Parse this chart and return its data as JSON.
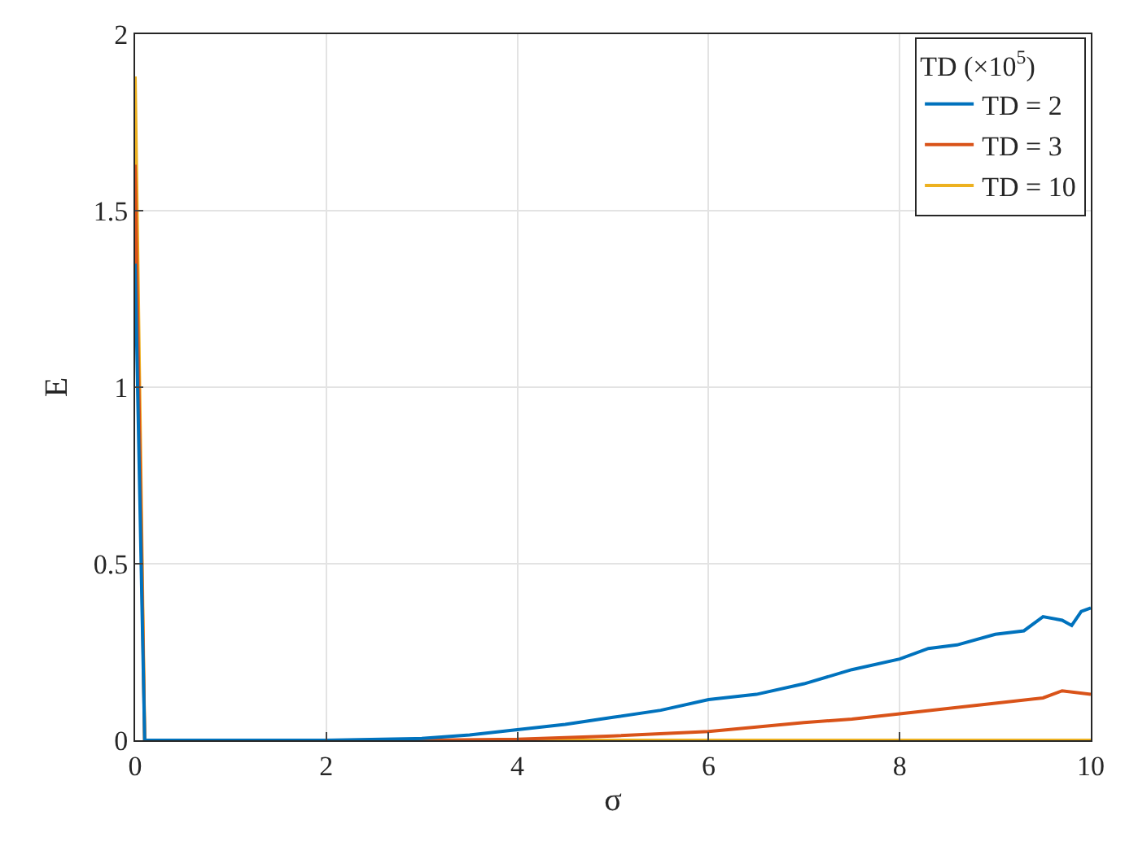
{
  "chart_data": {
    "type": "line",
    "xlabel": "σ",
    "ylabel": "E",
    "legend_title": "TD (×10$^{5}$)",
    "xlim": [
      0,
      10
    ],
    "ylim": [
      0,
      2
    ],
    "xticks": [
      0,
      2,
      4,
      6,
      8,
      10
    ],
    "yticks": [
      0,
      0.5,
      1,
      1.5,
      2
    ],
    "grid": true,
    "legend": "top right",
    "series": [
      {
        "name": "TD = 2",
        "color": "#0072bd",
        "x": [
          0,
          0.1,
          2,
          3,
          3.5,
          4,
          4.5,
          5,
          5.5,
          6,
          6.5,
          7,
          7.5,
          8,
          8.3,
          8.6,
          9,
          9.3,
          9.5,
          9.7,
          9.8,
          9.9,
          10
        ],
        "values": [
          1.35,
          0,
          0,
          0.005,
          0.015,
          0.03,
          0.045,
          0.065,
          0.085,
          0.115,
          0.13,
          0.16,
          0.2,
          0.23,
          0.26,
          0.27,
          0.3,
          0.31,
          0.35,
          0.34,
          0.325,
          0.365,
          0.375
        ]
      },
      {
        "name": "TD = 3",
        "color": "#d95319",
        "x": [
          0,
          0.1,
          3,
          4,
          5,
          6,
          7,
          7.5,
          8,
          8.5,
          9,
          9.5,
          9.7,
          10
        ],
        "values": [
          1.63,
          0,
          0,
          0.003,
          0.012,
          0.025,
          0.05,
          0.06,
          0.075,
          0.09,
          0.105,
          0.12,
          0.14,
          0.13
        ]
      },
      {
        "name": "TD = 10",
        "color": "#edb120",
        "x": [
          0,
          0.1,
          10
        ],
        "values": [
          1.88,
          0,
          0
        ]
      }
    ]
  }
}
